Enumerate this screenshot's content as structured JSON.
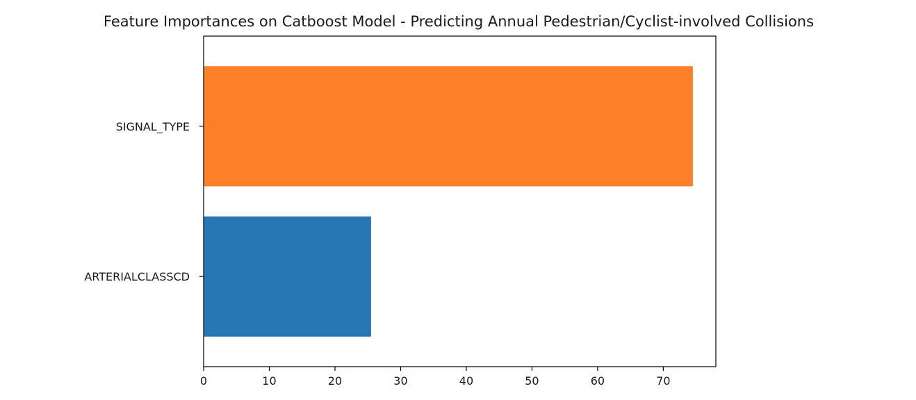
{
  "chart_data": {
    "type": "bar",
    "orientation": "horizontal",
    "title": "Feature Importances on Catboost Model - Predicting Annual Pedestrian/Cyclist-involved Collisions",
    "xlabel": "",
    "ylabel": "",
    "categories": [
      "ARTERIALCLASSCD",
      "SIGNAL_TYPE"
    ],
    "values": [
      25.5,
      74.5
    ],
    "colors": [
      "#2677b4",
      "#fd7f27"
    ],
    "xlim": [
      0,
      78
    ],
    "xticks": [
      0,
      10,
      20,
      30,
      40,
      50,
      60,
      70
    ],
    "grid": false
  }
}
